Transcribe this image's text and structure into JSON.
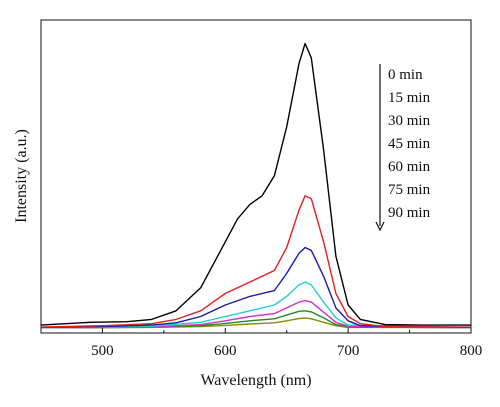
{
  "chart_data": {
    "type": "line",
    "title": "",
    "xlabel": "Wavelength (nm)",
    "ylabel": "Intensity (a.u.)",
    "xlim": [
      450,
      800
    ],
    "ylim": [
      0,
      1.03
    ],
    "xticks": [
      500,
      600,
      700,
      800
    ],
    "xtick_labels": [
      "500",
      "600",
      "700",
      "800"
    ],
    "y_tick_labels_shown": false,
    "grid": false,
    "legend_position": "top-right",
    "legend_arrow": "downward",
    "series": [
      {
        "name": "0 min",
        "color": "#000000",
        "points": [
          [
            450,
            0.01
          ],
          [
            470,
            0.015
          ],
          [
            490,
            0.02
          ],
          [
            520,
            0.022
          ],
          [
            540,
            0.03
          ],
          [
            560,
            0.06
          ],
          [
            580,
            0.14
          ],
          [
            600,
            0.3
          ],
          [
            610,
            0.38
          ],
          [
            620,
            0.43
          ],
          [
            630,
            0.46
          ],
          [
            640,
            0.53
          ],
          [
            650,
            0.7
          ],
          [
            660,
            0.92
          ],
          [
            665,
            0.99
          ],
          [
            670,
            0.94
          ],
          [
            680,
            0.62
          ],
          [
            690,
            0.25
          ],
          [
            700,
            0.08
          ],
          [
            710,
            0.03
          ],
          [
            730,
            0.012
          ],
          [
            760,
            0.01
          ],
          [
            800,
            0.01
          ]
        ]
      },
      {
        "name": "15 min",
        "color": "#dd2222",
        "points": [
          [
            450,
            0.003
          ],
          [
            500,
            0.008
          ],
          [
            540,
            0.015
          ],
          [
            560,
            0.03
          ],
          [
            580,
            0.06
          ],
          [
            600,
            0.12
          ],
          [
            620,
            0.16
          ],
          [
            640,
            0.2
          ],
          [
            650,
            0.28
          ],
          [
            660,
            0.41
          ],
          [
            665,
            0.46
          ],
          [
            670,
            0.45
          ],
          [
            680,
            0.3
          ],
          [
            690,
            0.12
          ],
          [
            700,
            0.04
          ],
          [
            710,
            0.015
          ],
          [
            730,
            0.005
          ],
          [
            800,
            0.003
          ]
        ]
      },
      {
        "name": "30 min",
        "color": "#1a1aaa",
        "points": [
          [
            450,
            0.002
          ],
          [
            500,
            0.005
          ],
          [
            540,
            0.01
          ],
          [
            560,
            0.018
          ],
          [
            580,
            0.04
          ],
          [
            600,
            0.08
          ],
          [
            620,
            0.11
          ],
          [
            640,
            0.13
          ],
          [
            650,
            0.19
          ],
          [
            660,
            0.26
          ],
          [
            665,
            0.28
          ],
          [
            670,
            0.27
          ],
          [
            680,
            0.18
          ],
          [
            690,
            0.07
          ],
          [
            700,
            0.025
          ],
          [
            710,
            0.008
          ],
          [
            800,
            0.002
          ]
        ]
      },
      {
        "name": "45 min",
        "color": "#22cccc",
        "points": [
          [
            450,
            0.001
          ],
          [
            500,
            0.003
          ],
          [
            540,
            0.006
          ],
          [
            580,
            0.02
          ],
          [
            600,
            0.04
          ],
          [
            620,
            0.06
          ],
          [
            640,
            0.08
          ],
          [
            650,
            0.11
          ],
          [
            660,
            0.15
          ],
          [
            665,
            0.16
          ],
          [
            670,
            0.15
          ],
          [
            680,
            0.09
          ],
          [
            690,
            0.035
          ],
          [
            700,
            0.01
          ],
          [
            800,
            0.001
          ]
        ]
      },
      {
        "name": "60 min",
        "color": "#cc33cc",
        "points": [
          [
            450,
            0.001
          ],
          [
            500,
            0.002
          ],
          [
            540,
            0.004
          ],
          [
            580,
            0.012
          ],
          [
            600,
            0.025
          ],
          [
            620,
            0.04
          ],
          [
            640,
            0.05
          ],
          [
            650,
            0.07
          ],
          [
            660,
            0.09
          ],
          [
            665,
            0.095
          ],
          [
            670,
            0.09
          ],
          [
            680,
            0.055
          ],
          [
            690,
            0.02
          ],
          [
            700,
            0.006
          ],
          [
            800,
            0.001
          ]
        ]
      },
      {
        "name": "75 min",
        "color": "#228b22",
        "points": [
          [
            450,
            0.001
          ],
          [
            500,
            0.002
          ],
          [
            540,
            0.003
          ],
          [
            580,
            0.008
          ],
          [
            600,
            0.016
          ],
          [
            620,
            0.025
          ],
          [
            640,
            0.032
          ],
          [
            650,
            0.045
          ],
          [
            660,
            0.058
          ],
          [
            665,
            0.06
          ],
          [
            670,
            0.056
          ],
          [
            680,
            0.035
          ],
          [
            690,
            0.012
          ],
          [
            700,
            0.004
          ],
          [
            800,
            0.001
          ]
        ]
      },
      {
        "name": "90 min",
        "color": "#8b8b00",
        "points": [
          [
            450,
            0.001
          ],
          [
            500,
            0.001
          ],
          [
            540,
            0.002
          ],
          [
            580,
            0.005
          ],
          [
            600,
            0.009
          ],
          [
            620,
            0.014
          ],
          [
            640,
            0.018
          ],
          [
            650,
            0.025
          ],
          [
            660,
            0.033
          ],
          [
            665,
            0.035
          ],
          [
            670,
            0.032
          ],
          [
            680,
            0.02
          ],
          [
            690,
            0.008
          ],
          [
            700,
            0.002
          ],
          [
            800,
            0.001
          ]
        ]
      }
    ]
  }
}
